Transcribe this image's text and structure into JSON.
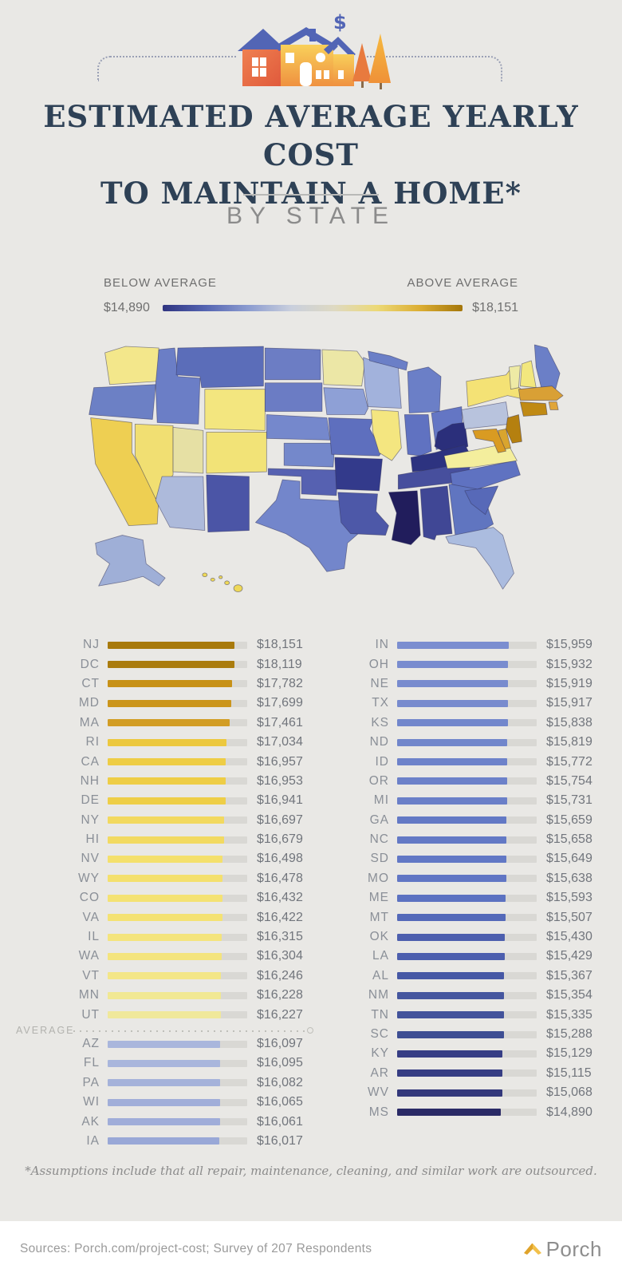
{
  "header": {
    "title_line1": "ESTIMATED AVERAGE YEARLY COST",
    "title_line2": "TO MAINTAIN A HOME*",
    "subtitle": "BY STATE",
    "currency_symbol": "$"
  },
  "legend": {
    "below_label": "BELOW AVERAGE",
    "above_label": "ABOVE AVERAGE",
    "min_value": "$14,890",
    "max_value": "$18,151",
    "gradient_colors": [
      "#2f3480",
      "#5565b2",
      "#8c9cd0",
      "#c9cfdd",
      "#ded9c2",
      "#ecd977",
      "#dcae33",
      "#a4760a"
    ]
  },
  "map": {
    "type": "choropleth",
    "min": 14890,
    "max": 18151,
    "state_colors": {
      "WA": "#f3e78b",
      "OR": "#6c80c5",
      "CA": "#eecf52",
      "NV": "#f1df72",
      "ID": "#6b7ec6",
      "MT": "#5b6db9",
      "WY": "#f3e67f",
      "UT": "#e6e0a4",
      "CO": "#f2e377",
      "AZ": "#adbadb",
      "NM": "#4b55a6",
      "ND": "#6c7dc4",
      "SD": "#6b7cc4",
      "NE": "#7588cc",
      "KS": "#7488cb",
      "OK": "#5661b1",
      "TX": "#7386cb",
      "MN": "#ece7a6",
      "IA": "#8ea0d6",
      "MO": "#5e6fbe",
      "AR": "#333a8b",
      "LA": "#4d58a8",
      "WI": "#a2b2dc",
      "IL": "#f4e680",
      "MI": "#6b7fc7",
      "IN": "#6072c1",
      "OH": "#6476c4",
      "KY": "#2d3380",
      "TN": "#474f9d",
      "MS": "#211d5c",
      "AL": "#404795",
      "GA": "#6075c0",
      "FL": "#abbcdf",
      "SC": "#5769b8",
      "NC": "#5f72c1",
      "VA": "#f4ee9d",
      "WV": "#2b2f7b",
      "PA": "#b8c3dd",
      "NY": "#f4e275",
      "VT": "#eeeaa5",
      "NH": "#f2e77e",
      "ME": "#6b7fc7",
      "MA": "#d9a035",
      "RI": "#e0a53a",
      "CT": "#c08a14",
      "NJ": "#b5800f",
      "DE": "#d9a52e",
      "MD": "#d99b22",
      "AK": "#9fafd7",
      "HI": "#eed858"
    }
  },
  "chart_data": {
    "type": "bar",
    "title": "Estimated average yearly cost to maintain a home, by state",
    "unit": "USD per year",
    "scale_max": 20000,
    "average": {
      "label": "AVERAGE",
      "insert_after_index": 19
    },
    "columns": [
      {
        "id": "left",
        "rows": [
          {
            "state": "NJ",
            "value": 18151,
            "display": "$18,151",
            "color": "#a87a0d"
          },
          {
            "state": "DC",
            "value": 18119,
            "display": "$18,119",
            "color": "#aa7c0e"
          },
          {
            "state": "CT",
            "value": 17782,
            "display": "$17,782",
            "color": "#c79117"
          },
          {
            "state": "MD",
            "value": 17699,
            "display": "$17,699",
            "color": "#cb951b"
          },
          {
            "state": "MA",
            "value": 17461,
            "display": "$17,461",
            "color": "#d29d24"
          },
          {
            "state": "RI",
            "value": 17034,
            "display": "$17,034",
            "color": "#ecc83e"
          },
          {
            "state": "CA",
            "value": 16957,
            "display": "$16,957",
            "color": "#eecd45"
          },
          {
            "state": "NH",
            "value": 16953,
            "display": "$16,953",
            "color": "#eecd46"
          },
          {
            "state": "DE",
            "value": 16941,
            "display": "$16,941",
            "color": "#eece47"
          },
          {
            "state": "NY",
            "value": 16697,
            "display": "$16,697",
            "color": "#f2d95f"
          },
          {
            "state": "HI",
            "value": 16679,
            "display": "$16,679",
            "color": "#f2da61"
          },
          {
            "state": "NV",
            "value": 16498,
            "display": "$16,498",
            "color": "#f4e06c"
          },
          {
            "state": "WY",
            "value": 16478,
            "display": "$16,478",
            "color": "#f4e06d"
          },
          {
            "state": "CO",
            "value": 16432,
            "display": "$16,432",
            "color": "#f4e273"
          },
          {
            "state": "VA",
            "value": 16422,
            "display": "$16,422",
            "color": "#f4e273"
          },
          {
            "state": "IL",
            "value": 16315,
            "display": "$16,315",
            "color": "#f4e47c"
          },
          {
            "state": "WA",
            "value": 16304,
            "display": "$16,304",
            "color": "#f4e47d"
          },
          {
            "state": "VT",
            "value": 16246,
            "display": "$16,246",
            "color": "#f3e687"
          },
          {
            "state": "MN",
            "value": 16228,
            "display": "$16,228",
            "color": "#f1e893"
          },
          {
            "state": "UT",
            "value": 16227,
            "display": "$16,227",
            "color": "#f0e89b"
          },
          {
            "state": "AZ",
            "value": 16097,
            "display": "$16,097",
            "color": "#a9b6dc"
          },
          {
            "state": "FL",
            "value": 16095,
            "display": "$16,095",
            "color": "#a9b6dc"
          },
          {
            "state": "PA",
            "value": 16082,
            "display": "$16,082",
            "color": "#a5b2da"
          },
          {
            "state": "WI",
            "value": 16065,
            "display": "$16,065",
            "color": "#a1aed9"
          },
          {
            "state": "AK",
            "value": 16061,
            "display": "$16,061",
            "color": "#a0add9"
          },
          {
            "state": "IA",
            "value": 16017,
            "display": "$16,017",
            "color": "#99a8d7"
          }
        ]
      },
      {
        "id": "right",
        "rows": [
          {
            "state": "IN",
            "value": 15959,
            "display": "$15,959",
            "color": "#7b8ed0"
          },
          {
            "state": "OH",
            "value": 15932,
            "display": "$15,932",
            "color": "#798ccf"
          },
          {
            "state": "NE",
            "value": 15919,
            "display": "$15,919",
            "color": "#788bce"
          },
          {
            "state": "TX",
            "value": 15917,
            "display": "$15,917",
            "color": "#788bce"
          },
          {
            "state": "KS",
            "value": 15838,
            "display": "$15,838",
            "color": "#7287cc"
          },
          {
            "state": "ND",
            "value": 15819,
            "display": "$15,819",
            "color": "#7186cb"
          },
          {
            "state": "ID",
            "value": 15772,
            "display": "$15,772",
            "color": "#6d82ca"
          },
          {
            "state": "OR",
            "value": 15754,
            "display": "$15,754",
            "color": "#6c81c9"
          },
          {
            "state": "MI",
            "value": 15731,
            "display": "$15,731",
            "color": "#6a7fc8"
          },
          {
            "state": "GA",
            "value": 15659,
            "display": "$15,659",
            "color": "#6379c5"
          },
          {
            "state": "NC",
            "value": 15658,
            "display": "$15,658",
            "color": "#6379c5"
          },
          {
            "state": "SD",
            "value": 15649,
            "display": "$15,649",
            "color": "#6278c5"
          },
          {
            "state": "MO",
            "value": 15638,
            "display": "$15,638",
            "color": "#6176c4"
          },
          {
            "state": "ME",
            "value": 15593,
            "display": "$15,593",
            "color": "#5c72c1"
          },
          {
            "state": "MT",
            "value": 15507,
            "display": "$15,507",
            "color": "#5469b9"
          },
          {
            "state": "OK",
            "value": 15430,
            "display": "$15,430",
            "color": "#4d5fae"
          },
          {
            "state": "LA",
            "value": 15429,
            "display": "$15,429",
            "color": "#4d5fae"
          },
          {
            "state": "AL",
            "value": 15367,
            "display": "$15,367",
            "color": "#4658a5"
          },
          {
            "state": "NM",
            "value": 15354,
            "display": "$15,354",
            "color": "#45569f"
          },
          {
            "state": "TN",
            "value": 15335,
            "display": "$15,335",
            "color": "#43539b"
          },
          {
            "state": "SC",
            "value": 15288,
            "display": "$15,288",
            "color": "#3e4e93"
          },
          {
            "state": "KY",
            "value": 15129,
            "display": "$15,129",
            "color": "#373e85"
          },
          {
            "state": "AR",
            "value": 15115,
            "display": "$15,115",
            "color": "#363d83"
          },
          {
            "state": "WV",
            "value": 15068,
            "display": "$15,068",
            "color": "#33387b"
          },
          {
            "state": "MS",
            "value": 14890,
            "display": "$14,890",
            "color": "#2a2a66"
          }
        ]
      }
    ]
  },
  "footnote": "*Assumptions include that all repair, maintenance, cleaning, and similar work are outsourced.",
  "footer": {
    "sources": "Sources: Porch.com/project-cost; Survey of 207 Respondents",
    "brand": "Porch"
  }
}
